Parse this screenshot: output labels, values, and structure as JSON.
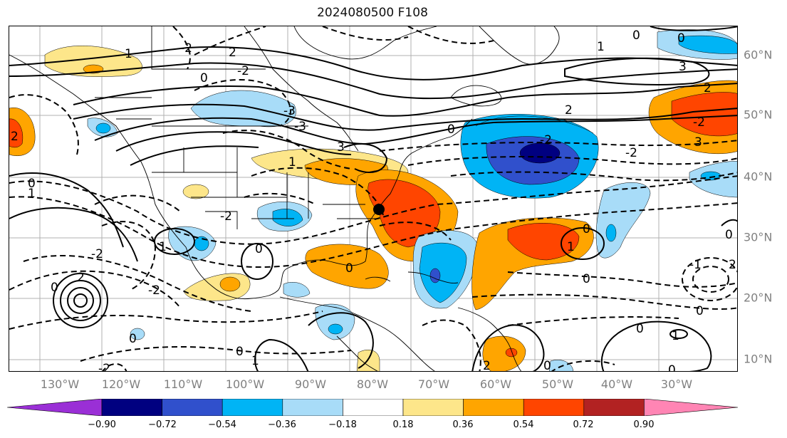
{
  "title": "2024080500 F108",
  "map": {
    "lon_labels": [
      "130°W",
      "120°W",
      "110°W",
      "100°W",
      "90°W",
      "80°W",
      "70°W",
      "60°W",
      "50°W",
      "40°W",
      "30°W"
    ],
    "lat_labels": [
      "60°N",
      "50°N",
      "40°N",
      "30°N",
      "20°N",
      "10°N"
    ],
    "contour_labels": [
      "0",
      "1",
      "2",
      "3",
      "-1",
      "-2",
      "-3"
    ],
    "marker": "black-dot"
  },
  "colorbar": {
    "ticks": [
      "−0.90",
      "−0.72",
      "−0.54",
      "−0.36",
      "−0.18",
      "0.18",
      "0.36",
      "0.54",
      "0.72",
      "0.90"
    ],
    "colors": [
      "#9a2fd6",
      "#000080",
      "#3050cc",
      "#00b4f5",
      "#a8dcf8",
      "#ffffff",
      "#fde68a",
      "#ffa500",
      "#ff4500",
      "#b22222",
      "#ff85b4"
    ]
  }
}
